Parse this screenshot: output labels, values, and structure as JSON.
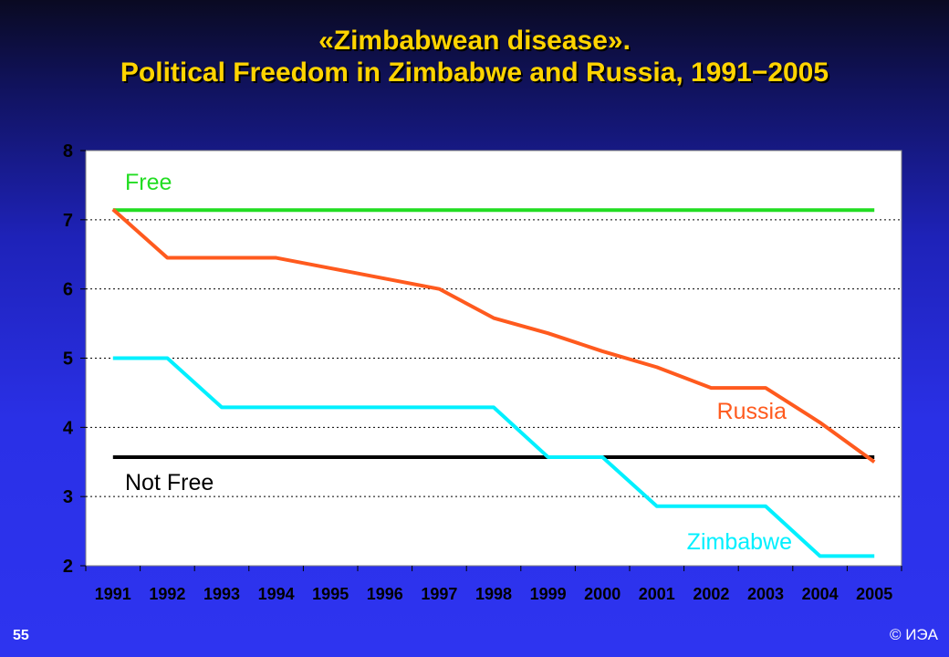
{
  "title_line1": "«Zimbabwean disease».",
  "title_line2": "Political Freedom in Zimbabwe and Russia, 1991−2005",
  "page_number": "55",
  "copyright": "© ИЭА",
  "chart_data": {
    "type": "line",
    "x": [
      "1991",
      "1992",
      "1993",
      "1994",
      "1995",
      "1996",
      "1997",
      "1998",
      "1999",
      "2000",
      "2001",
      "2002",
      "2003",
      "2004",
      "2005"
    ],
    "ylim": [
      2,
      8
    ],
    "yticks": [
      2,
      3,
      4,
      5,
      6,
      7,
      8
    ],
    "grid": true,
    "series": [
      {
        "name": "Russia",
        "color": "#ff5a1e",
        "values": [
          7.15,
          6.45,
          6.45,
          6.45,
          6.3,
          6.15,
          6.0,
          5.58,
          5.36,
          5.1,
          4.87,
          4.57,
          4.57,
          4.07,
          3.5
        ]
      },
      {
        "name": "Zimbabwe",
        "color": "#00f0ff",
        "values": [
          5.0,
          5.0,
          4.29,
          4.29,
          4.29,
          4.29,
          4.29,
          4.29,
          3.57,
          3.57,
          2.86,
          2.86,
          2.86,
          2.14,
          2.14
        ]
      }
    ],
    "reference_lines": [
      {
        "label": "Free",
        "value": 7.14,
        "color": "#22dd22"
      },
      {
        "label": "Not Free",
        "value": 3.57,
        "color": "#000000"
      }
    ],
    "colors": {
      "plot_background": "#ffffff",
      "title": "#ffd400"
    }
  }
}
